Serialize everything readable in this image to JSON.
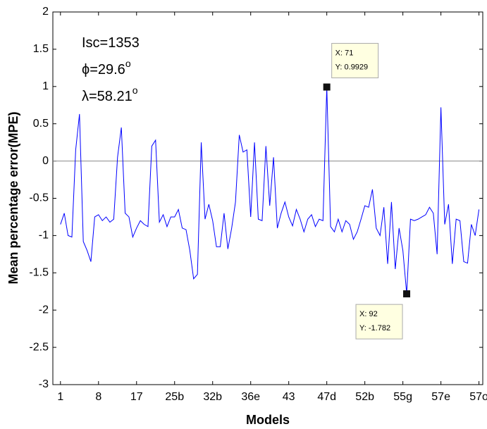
{
  "chart_data": {
    "type": "line",
    "xlabel": "Models",
    "ylabel": "Mean percentage error(MPE)",
    "annotations": [
      {
        "text": "Isc=1353"
      },
      {
        "text": "ϕ=29.6",
        "sup": "o"
      },
      {
        "text": "λ=58.21",
        "sup": "o"
      }
    ],
    "datatips": [
      {
        "x": 71,
        "y": 0.9929,
        "label_x": "X: 71",
        "label_y": "Y: 0.9929"
      },
      {
        "x": 92,
        "y": -1.782,
        "label_x": "X: 92",
        "label_y": "Y: -1.782"
      }
    ],
    "color": "#0000ff",
    "x": [
      1,
      2,
      3,
      4,
      5,
      6,
      7,
      8,
      9,
      10,
      11,
      12,
      13,
      14,
      15,
      16,
      17,
      18,
      19,
      20,
      21,
      22,
      23,
      24,
      25,
      26,
      27,
      28,
      29,
      30,
      31,
      32,
      33,
      34,
      35,
      36,
      37,
      38,
      39,
      40,
      41,
      42,
      43,
      44,
      45,
      46,
      47,
      48,
      49,
      50,
      51,
      52,
      53,
      54,
      55,
      56,
      57,
      58,
      59,
      60,
      61,
      62,
      63,
      64,
      65,
      66,
      67,
      68,
      69,
      70,
      71,
      72,
      73,
      74,
      75,
      76,
      77,
      78,
      79,
      80,
      81,
      82,
      83,
      84,
      85,
      86,
      87,
      88,
      89,
      90,
      91,
      92,
      93,
      94,
      95,
      96,
      97,
      98,
      99,
      100,
      101,
      102,
      103,
      104,
      105,
      106,
      107,
      108,
      109,
      110,
      111
    ],
    "values": [
      -0.85,
      -0.7,
      -1.0,
      -1.02,
      0.15,
      0.63,
      -1.08,
      -1.2,
      -1.35,
      -0.75,
      -0.72,
      -0.8,
      -0.75,
      -0.82,
      -0.78,
      0.05,
      0.45,
      -0.7,
      -0.75,
      -1.02,
      -0.9,
      -0.8,
      -0.85,
      -0.88,
      0.2,
      0.28,
      -0.82,
      -0.72,
      -0.88,
      -0.75,
      -0.75,
      -0.65,
      -0.9,
      -0.92,
      -1.2,
      -1.58,
      -1.52,
      0.25,
      -0.78,
      -0.58,
      -0.8,
      -1.15,
      -1.15,
      -0.7,
      -1.18,
      -0.9,
      -0.55,
      0.35,
      0.12,
      0.15,
      -0.75,
      0.25,
      -0.78,
      -0.8,
      0.2,
      -0.6,
      0.05,
      -0.9,
      -0.7,
      -0.55,
      -0.75,
      -0.87,
      -0.65,
      -0.78,
      -0.95,
      -0.78,
      -0.72,
      -0.88,
      -0.78,
      -0.8,
      0.9929,
      -0.88,
      -0.95,
      -0.78,
      -0.95,
      -0.8,
      -0.85,
      -1.05,
      -0.95,
      -0.78,
      -0.6,
      -0.62,
      -0.38,
      -0.9,
      -1.0,
      -0.62,
      -1.38,
      -0.55,
      -1.45,
      -0.9,
      -1.2,
      -1.782,
      -0.78,
      -0.8,
      -0.78,
      -0.75,
      -0.72,
      -0.62,
      -0.7,
      -1.25,
      0.72,
      -0.85,
      -0.58,
      -1.38,
      -0.78,
      -0.8,
      -1.35,
      -1.37,
      -0.85,
      -1.0,
      -0.65
    ],
    "xlim": [
      -1,
      112
    ],
    "ylim": [
      -3,
      2
    ],
    "xticks": [
      1,
      {
        "value": 11,
        "label": "8"
      },
      {
        "value": 21,
        "label": "17"
      },
      {
        "value": 31,
        "label": "25b"
      },
      {
        "value": 41,
        "label": "32b"
      },
      {
        "value": 51,
        "label": "36e"
      },
      {
        "value": 61,
        "label": "43"
      },
      {
        "value": 71,
        "label": "47d"
      },
      {
        "value": 81,
        "label": "52b"
      },
      {
        "value": 91,
        "label": "55g"
      },
      {
        "value": 101,
        "label": "57e"
      },
      {
        "value": 111,
        "label": "57o"
      }
    ],
    "yticks": [
      -3,
      -2.5,
      -2,
      -1.5,
      -1,
      -0.5,
      0,
      0.5,
      1,
      1.5,
      2
    ],
    "zero_line": true
  }
}
